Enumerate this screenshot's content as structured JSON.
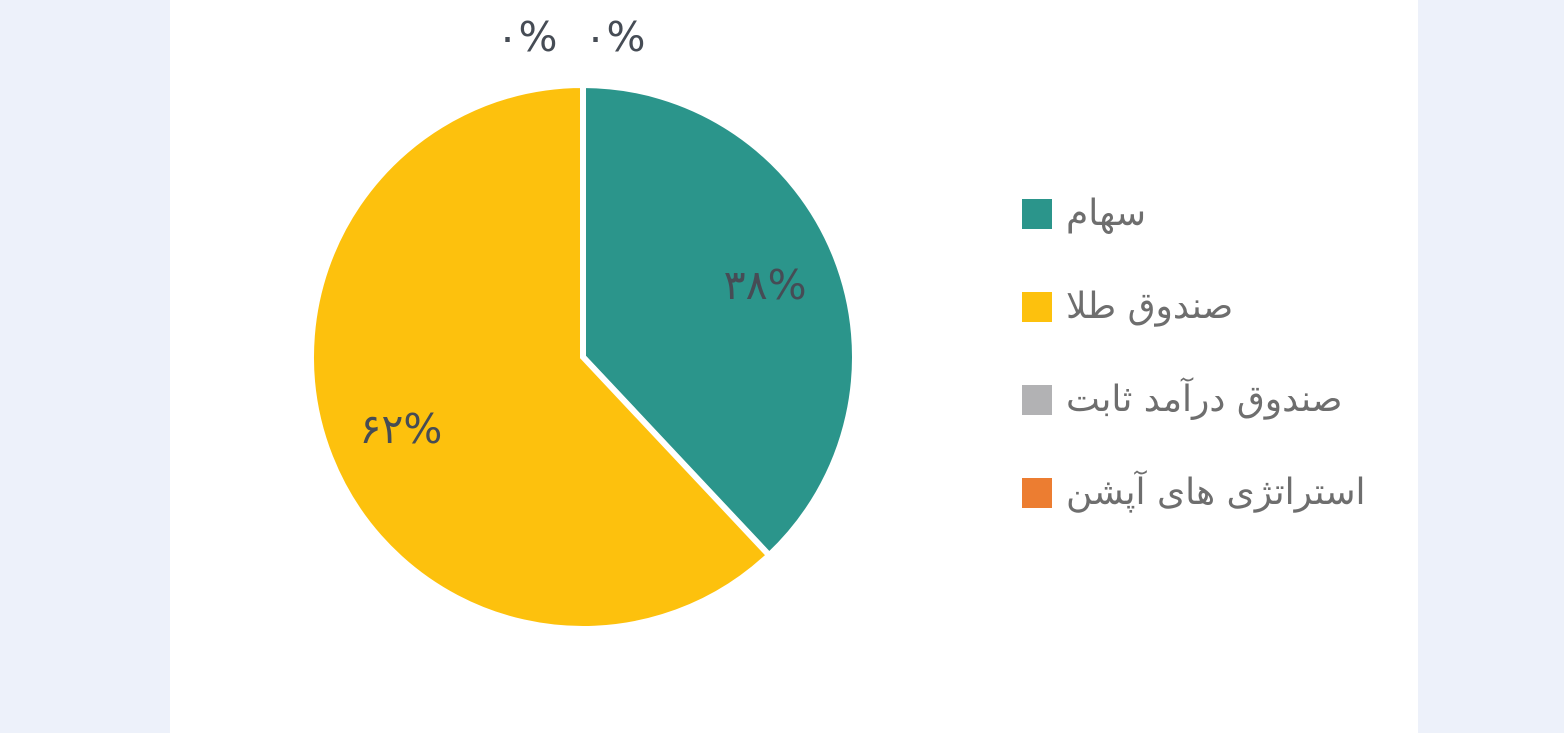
{
  "page": {
    "background_color": "#ffffff",
    "side_panel_color": "#edf1fa"
  },
  "chart_data": {
    "type": "pie",
    "title": "",
    "direction": "clockwise",
    "start_angle_deg": 0,
    "legend_position": "right",
    "value_labels_inside": true,
    "slice_border_color": "#ffffff",
    "slice_label_color": "#464c55",
    "legend_text_color": "#6e6e6e",
    "slices": [
      {
        "label": "سهام",
        "value": 38,
        "value_label": "۳۸%",
        "color": "#2b958b"
      },
      {
        "label": "صندوق طلا",
        "value": 62,
        "value_label": "۶۲%",
        "color": "#fdc10d"
      },
      {
        "label": "صندوق درآمد ثابت",
        "value": 0,
        "value_label": "۰%",
        "color": "#b2b2b4"
      },
      {
        "label": "استراتژی های آپشن",
        "value": 0,
        "value_label": "۰%",
        "color": "#ec7d31"
      }
    ]
  }
}
